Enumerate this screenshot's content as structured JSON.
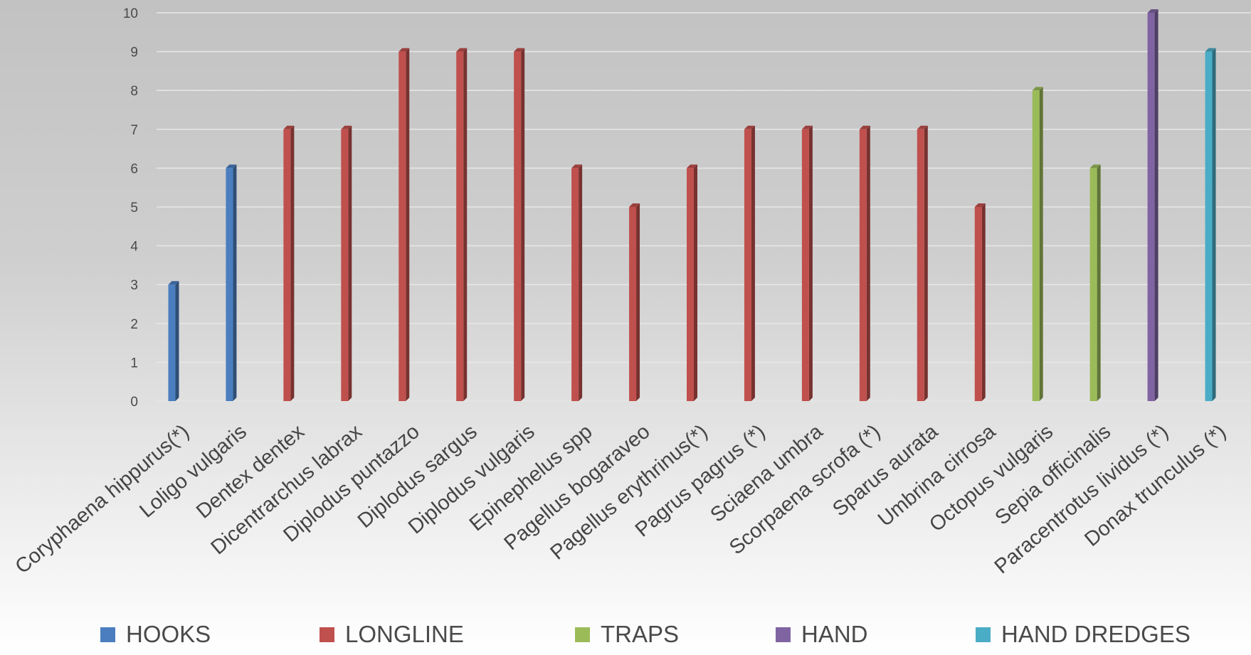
{
  "chart_data": {
    "type": "bar",
    "title": "",
    "xlabel": "",
    "ylabel": "",
    "ylim": [
      0,
      10
    ],
    "yticks": [
      0,
      1,
      2,
      3,
      4,
      5,
      6,
      7,
      8,
      9,
      10
    ],
    "grid": true,
    "legend_position": "bottom",
    "categories": [
      "Coryphaena hippurus(*)",
      "Loligo vulgaris",
      "Dentex dentex",
      "Dicentrarchus labrax",
      "Diplodus puntazzo",
      "Diplodus sargus",
      "Diplodus vulgaris",
      "Epinephelus spp",
      "Pagellus bogaraveo",
      "Pagellus erythrinus(*)",
      "Pagrus pagrus (*)",
      "Sciaena umbra",
      "Scorpaena scrofa (*)",
      "Sparus aurata",
      "Umbrina cirrosa",
      "Octopus vulgaris",
      "Sepia officinalis",
      "Paracentrotus lividus (*)",
      "Donax trunculus (*)"
    ],
    "series": [
      {
        "name": "HOOKS",
        "color": "#4a7ebf",
        "values": [
          3,
          6,
          null,
          null,
          null,
          null,
          null,
          null,
          null,
          null,
          null,
          null,
          null,
          null,
          null,
          null,
          null,
          null,
          null
        ]
      },
      {
        "name": "LONGLINE",
        "color": "#c0504d",
        "values": [
          null,
          null,
          7,
          7,
          9,
          9,
          9,
          6,
          5,
          6,
          7,
          7,
          7,
          7,
          5,
          null,
          null,
          null,
          null
        ]
      },
      {
        "name": "TRAPS",
        "color": "#9bbb59",
        "values": [
          null,
          null,
          null,
          null,
          null,
          null,
          null,
          null,
          null,
          null,
          null,
          null,
          null,
          null,
          null,
          8,
          6,
          null,
          null
        ]
      },
      {
        "name": "HAND",
        "color": "#8064a2",
        "values": [
          null,
          null,
          null,
          null,
          null,
          null,
          null,
          null,
          null,
          null,
          null,
          null,
          null,
          null,
          null,
          null,
          null,
          10,
          null
        ]
      },
      {
        "name": "HAND DREDGES",
        "color": "#4bacc6",
        "values": [
          null,
          null,
          null,
          null,
          null,
          null,
          null,
          null,
          null,
          null,
          null,
          null,
          null,
          null,
          null,
          null,
          null,
          null,
          9
        ]
      }
    ]
  }
}
